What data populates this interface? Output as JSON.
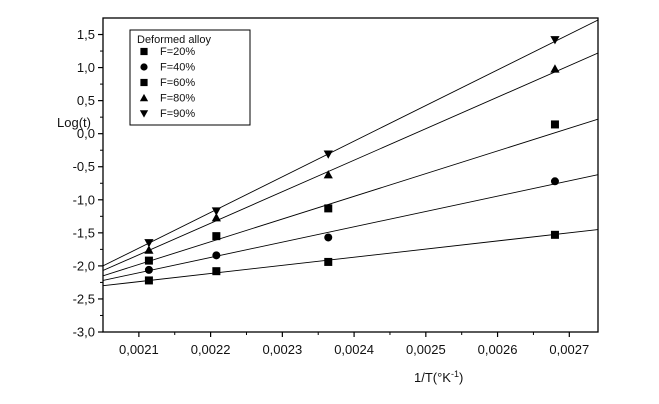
{
  "chart_data": {
    "type": "scatter",
    "xlabel": "1/T(°K",
    "xlabel_sup": "-1",
    "xlabel_close": ")",
    "ylabel": "Log(t)",
    "xlim": [
      0.00205,
      0.00274
    ],
    "ylim": [
      -3.0,
      1.75
    ],
    "xticks": [
      0.0021,
      0.0022,
      0.0023,
      0.0024,
      0.0025,
      0.0026,
      0.0027
    ],
    "xtick_labels": [
      "0,0021",
      "0,0022",
      "0,0023",
      "0,0024",
      "0,0025",
      "0,0026",
      "0,0027"
    ],
    "yticks": [
      -3.0,
      -2.5,
      -2.0,
      -1.5,
      -1.0,
      -0.5,
      0.0,
      0.5,
      1.0,
      1.5
    ],
    "ytick_labels": [
      "-3,0",
      "-2,5",
      "-2,0",
      "-1,5",
      "-1,0",
      "-0,5",
      "0,0",
      "0,5",
      "1,0",
      "1,5"
    ],
    "grid": false,
    "legend": {
      "title": "Deformed alloy",
      "placement": "top-left"
    },
    "series": [
      {
        "name": "F=20%",
        "marker": "square",
        "x": [
          0.002114,
          0.002208,
          0.002364,
          0.00268
        ],
        "y": [
          -2.22,
          -2.08,
          -1.94,
          -1.53
        ],
        "fit": {
          "x": [
            0.00205,
            0.00274
          ],
          "y": [
            -2.3,
            -1.45
          ]
        }
      },
      {
        "name": "F=40%",
        "marker": "circle",
        "x": [
          0.002114,
          0.002208,
          0.002364,
          0.00268
        ],
        "y": [
          -2.06,
          -1.84,
          -1.57,
          -0.72
        ],
        "fit": {
          "x": [
            0.00205,
            0.00274
          ],
          "y": [
            -2.22,
            -0.62
          ]
        }
      },
      {
        "name": "F=60%",
        "marker": "square",
        "x": [
          0.002114,
          0.002208,
          0.002364,
          0.00268
        ],
        "y": [
          -1.92,
          -1.55,
          -1.13,
          0.14
        ],
        "fit": {
          "x": [
            0.00205,
            0.00274
          ],
          "y": [
            -2.15,
            0.22
          ]
        }
      },
      {
        "name": "F=80%",
        "marker": "triangle-up",
        "x": [
          0.002114,
          0.002208,
          0.002364,
          0.00268
        ],
        "y": [
          -1.76,
          -1.27,
          -0.62,
          0.98
        ],
        "fit": {
          "x": [
            0.00205,
            0.00274
          ],
          "y": [
            -2.07,
            1.22
          ]
        }
      },
      {
        "name": "F=90%",
        "marker": "triangle-down",
        "x": [
          0.002114,
          0.002208,
          0.002364,
          0.00268
        ],
        "y": [
          -1.65,
          -1.17,
          -0.31,
          1.42
        ],
        "fit": {
          "x": [
            0.00205,
            0.00274
          ],
          "y": [
            -2.0,
            1.72
          ]
        }
      }
    ]
  }
}
